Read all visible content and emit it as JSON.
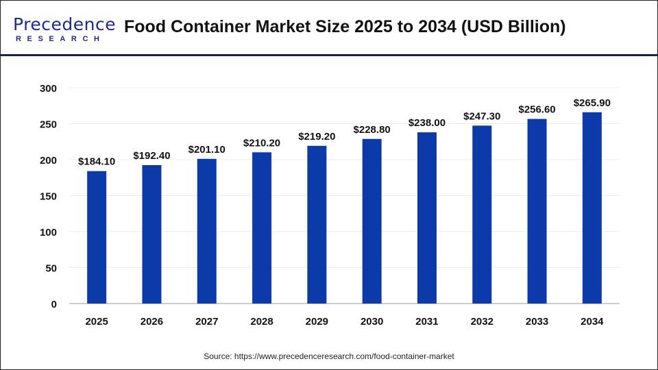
{
  "header": {
    "logo_text": "Precedence",
    "logo_subtext": "RESEARCH",
    "title": "Food Container Market Size 2025 to 2034 (USD Billion)"
  },
  "chart_data": {
    "type": "bar",
    "title": "Food Container Market Size 2025 to 2034 (USD Billion)",
    "categories": [
      "2025",
      "2026",
      "2027",
      "2028",
      "2029",
      "2030",
      "2031",
      "2032",
      "2033",
      "2034"
    ],
    "values": [
      184.1,
      192.4,
      201.1,
      210.2,
      219.2,
      228.8,
      238.0,
      247.3,
      256.6,
      265.9
    ],
    "data_labels": [
      "$184.10",
      "$192.40",
      "$201.10",
      "$210.20",
      "$219.20",
      "$228.80",
      "$238.00",
      "$247.30",
      "$256.60",
      "$265.90"
    ],
    "yticks": [
      0,
      50,
      100,
      150,
      200,
      250,
      300
    ],
    "ylim": [
      0,
      300
    ],
    "xlabel": "",
    "ylabel": "",
    "grid": true,
    "bar_color": "#0d3aa9"
  },
  "footer": {
    "source": "Source: https://www.precedenceresearch.com/food-container-market"
  }
}
